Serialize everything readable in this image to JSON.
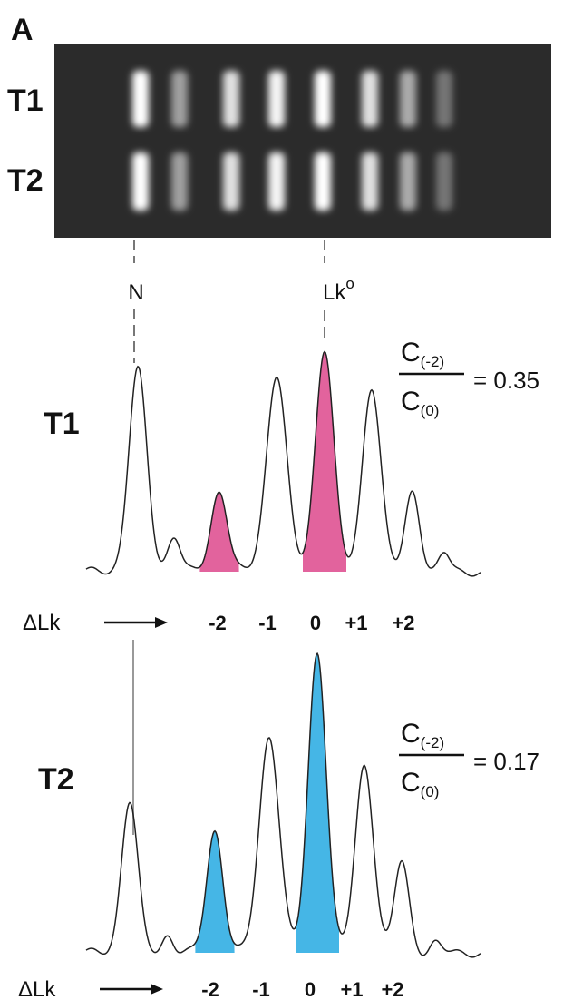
{
  "panel_label": "A",
  "gel": {
    "lanes": [
      "T1",
      "T2"
    ],
    "markers": [
      {
        "label": "N"
      },
      {
        "label": "Lk",
        "sup": "o"
      }
    ]
  },
  "traces": [
    {
      "label": "T1",
      "ratio": {
        "numerator": "C",
        "numerator_sub": "(-2)",
        "denominator": "C",
        "denominator_sub": "(0)",
        "result": "= 0.35"
      },
      "axis": {
        "label": "ΔLk",
        "ticks": [
          "-2",
          "-1",
          "0",
          "+1",
          "+2"
        ]
      }
    },
    {
      "label": "T2",
      "ratio": {
        "numerator": "C",
        "numerator_sub": "(-2)",
        "denominator": "C",
        "denominator_sub": "(0)",
        "result": "= 0.17"
      },
      "axis": {
        "label": "ΔLk",
        "ticks": [
          "-2",
          "-1",
          "0",
          "+1",
          "+2"
        ]
      }
    }
  ]
}
